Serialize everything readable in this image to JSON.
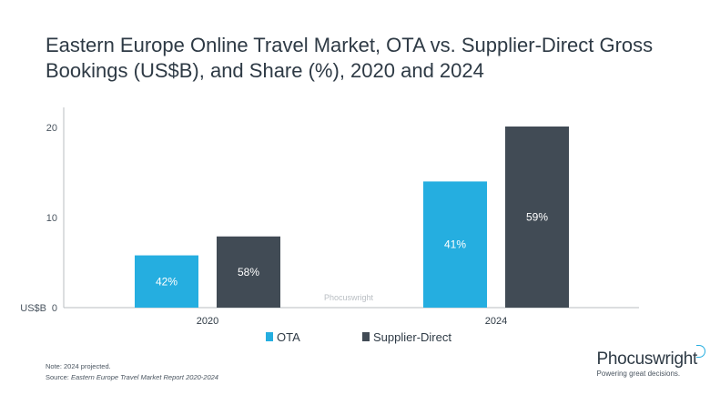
{
  "header": {
    "title_line1": "Eastern Europe Online Travel Market, OTA vs. Supplier-Direct Gross",
    "title_line2": "Bookings (US$B), and Share (%), 2020 and 2024"
  },
  "chart_data": {
    "type": "bar",
    "categories": [
      "2020",
      "2024"
    ],
    "series": [
      {
        "name": "OTA",
        "values": [
          5.8,
          14.0
        ],
        "share_labels": [
          "42%",
          "41%"
        ],
        "color": "#25aee0"
      },
      {
        "name": "Supplier-Direct",
        "values": [
          7.9,
          20.1
        ],
        "share_labels": [
          "58%",
          "59%"
        ],
        "color": "#414b55"
      }
    ],
    "ylabel": "US$B",
    "ylim": [
      0,
      22
    ],
    "yticks": [
      0,
      10,
      20
    ],
    "grid": false,
    "legend": "bottom-center"
  },
  "watermark": "Phocuswright",
  "footer": {
    "note": "Note: 2024 projected.",
    "source_prefix": "Source: ",
    "source_title": "Eastern Europe Travel Market Report 2020-2024"
  },
  "logo": {
    "name": "Phocuswright",
    "tagline": "Powering great decisions."
  }
}
